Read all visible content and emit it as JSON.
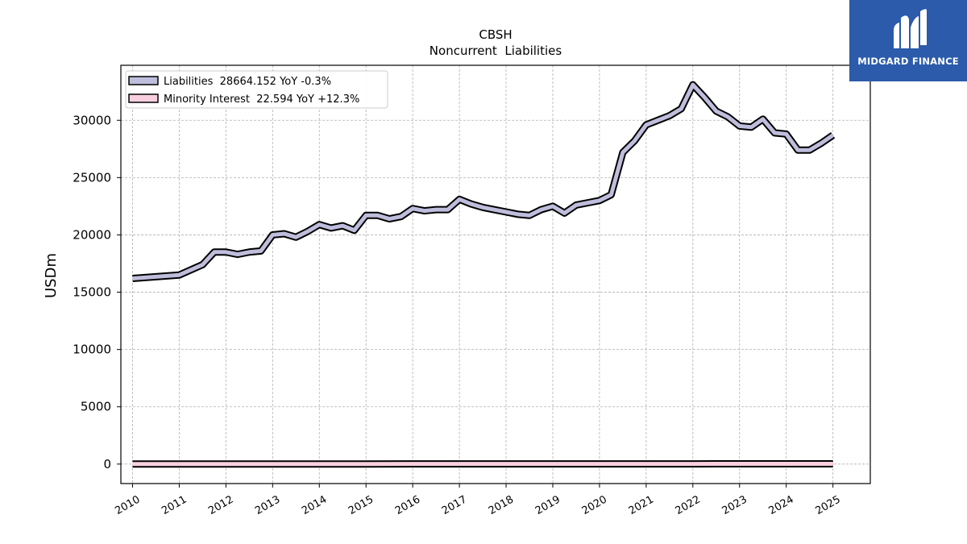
{
  "brand": {
    "name": "MIDGARD FINANCE",
    "color": "#2B5BAA"
  },
  "chart_data": {
    "type": "line",
    "title": "CBSH",
    "subtitle": "Noncurrent  Liabilities",
    "ylabel": "USDm",
    "xlabel": "",
    "ylim": [
      -1700,
      34800
    ],
    "xlim": [
      2009.75,
      2025.8
    ],
    "yticks": [
      0,
      5000,
      10000,
      15000,
      20000,
      25000,
      30000
    ],
    "xticks": [
      "2010",
      "2011",
      "2012",
      "2013",
      "2014",
      "2015",
      "2016",
      "2017",
      "2018",
      "2019",
      "2020",
      "2021",
      "2022",
      "2023",
      "2024",
      "2025"
    ],
    "grid": true,
    "legend_position": "top-left",
    "series": [
      {
        "name": "Liabilities",
        "legend": "Liabilities  28664.152 YoY -0.3%",
        "color": "#BFBDDC",
        "x": [
          2010.0,
          2011.0,
          2011.5,
          2011.75,
          2012.0,
          2012.25,
          2012.5,
          2012.75,
          2013.0,
          2013.25,
          2013.5,
          2013.75,
          2014.0,
          2014.25,
          2014.5,
          2014.75,
          2015.0,
          2015.25,
          2015.5,
          2015.75,
          2016.0,
          2016.25,
          2016.5,
          2016.75,
          2017.0,
          2017.25,
          2017.5,
          2017.75,
          2018.0,
          2018.25,
          2018.5,
          2018.75,
          2019.0,
          2019.25,
          2019.5,
          2019.75,
          2020.0,
          2020.25,
          2020.5,
          2020.75,
          2021.0,
          2021.25,
          2021.5,
          2021.75,
          2022.0,
          2022.25,
          2022.5,
          2022.75,
          2023.0,
          2023.25,
          2023.5,
          2023.75,
          2024.0,
          2024.25,
          2024.5,
          2024.75,
          2025.0
        ],
        "values": [
          16200,
          16500,
          17400,
          18500,
          18500,
          18300,
          18500,
          18600,
          20000,
          20100,
          19800,
          20300,
          20900,
          20600,
          20800,
          20400,
          21700,
          21700,
          21400,
          21600,
          22300,
          22100,
          22200,
          22200,
          23100,
          22700,
          22400,
          22200,
          22000,
          21800,
          21700,
          22200,
          22500,
          21900,
          22600,
          22800,
          23000,
          23500,
          27200,
          28200,
          29600,
          30000,
          30400,
          31000,
          33100,
          32000,
          30800,
          30300,
          29500,
          29400,
          30100,
          28900,
          28800,
          27400,
          27400,
          28000,
          28700
        ]
      },
      {
        "name": "Minority Interest",
        "legend": "Minority Interest  22.594 YoY +12.3%",
        "color": "#F9CFE0",
        "x": [
          2010.0,
          2015.0,
          2020.0,
          2022.0,
          2025.0
        ],
        "values": [
          5,
          10,
          15,
          18,
          22.594
        ]
      }
    ]
  }
}
